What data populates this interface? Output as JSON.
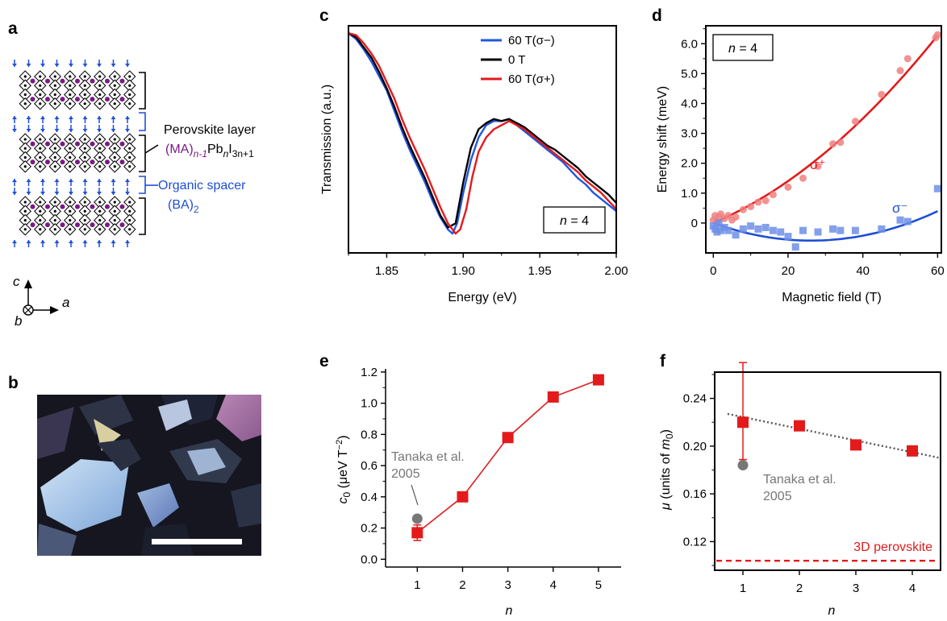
{
  "panels": {
    "a": "a",
    "b": "b",
    "c": "c",
    "d": "d",
    "e": "e",
    "f": "f"
  },
  "panel_a": {
    "perovskite_layer": "Perovskite layer",
    "formula_ma": "(MA)",
    "formula_ma_sub": "n-1",
    "formula_pb": "Pb",
    "formula_pb_sub": "n",
    "formula_i": "I",
    "formula_i_sub": "3n+1",
    "organic_spacer": "Organic spacer",
    "ba": "(BA)",
    "ba_sub": "2",
    "axis_c": "c",
    "axis_a": "a",
    "axis_b": "b",
    "colors": {
      "perovskite": "#7b1a87",
      "spacer": "#1f4fd6",
      "black": "#000000"
    }
  },
  "chart_data": [
    {
      "panel": "c",
      "type": "line",
      "xlabel": "Energy (eV)",
      "ylabel": "Transmission (a.u.)",
      "xlim": [
        1.825,
        2.0
      ],
      "x_ticks": [
        "1.85",
        "1.90",
        "1.95",
        "2.00"
      ],
      "inset": "n = 4",
      "legend_position": "top-right",
      "series": [
        {
          "name": "60 T(σ−)",
          "color": "#1f57e0",
          "x": [
            1.825,
            1.83,
            1.835,
            1.84,
            1.845,
            1.85,
            1.855,
            1.86,
            1.865,
            1.87,
            1.875,
            1.88,
            1.885,
            1.89,
            1.893,
            1.896,
            1.9,
            1.905,
            1.91,
            1.915,
            1.92,
            1.925,
            1.93,
            1.935,
            1.94,
            1.945,
            1.95,
            1.955,
            1.96,
            1.965,
            1.97,
            1.975,
            1.98,
            1.985,
            1.99,
            1.995,
            2.0
          ],
          "y": [
            0.98,
            0.95,
            0.9,
            0.84,
            0.77,
            0.7,
            0.6,
            0.5,
            0.41,
            0.33,
            0.25,
            0.16,
            0.08,
            0.02,
            0.0,
            0.05,
            0.2,
            0.36,
            0.47,
            0.53,
            0.55,
            0.55,
            0.56,
            0.53,
            0.5,
            0.47,
            0.44,
            0.41,
            0.38,
            0.35,
            0.31,
            0.27,
            0.24,
            0.2,
            0.17,
            0.14,
            0.11
          ]
        },
        {
          "name": "0 T",
          "color": "#000000",
          "x": [
            1.825,
            1.83,
            1.835,
            1.84,
            1.845,
            1.85,
            1.855,
            1.86,
            1.865,
            1.87,
            1.875,
            1.88,
            1.885,
            1.89,
            1.895,
            1.9,
            1.905,
            1.91,
            1.915,
            1.92,
            1.925,
            1.93,
            1.935,
            1.94,
            1.945,
            1.95,
            1.955,
            1.96,
            1.965,
            1.97,
            1.975,
            1.98,
            1.985,
            1.99,
            1.995,
            2.0
          ],
          "y": [
            0.98,
            0.96,
            0.91,
            0.86,
            0.79,
            0.71,
            0.62,
            0.52,
            0.43,
            0.35,
            0.27,
            0.18,
            0.09,
            0.03,
            0.05,
            0.25,
            0.42,
            0.51,
            0.54,
            0.56,
            0.55,
            0.56,
            0.54,
            0.52,
            0.49,
            0.46,
            0.43,
            0.41,
            0.38,
            0.35,
            0.32,
            0.28,
            0.25,
            0.22,
            0.19,
            0.15
          ]
        },
        {
          "name": "60 T(σ+)",
          "color": "#e31a1c",
          "x": [
            1.825,
            1.83,
            1.835,
            1.84,
            1.845,
            1.85,
            1.855,
            1.86,
            1.865,
            1.87,
            1.875,
            1.88,
            1.885,
            1.89,
            1.895,
            1.898,
            1.902,
            1.906,
            1.91,
            1.915,
            1.92,
            1.925,
            1.93,
            1.935,
            1.94,
            1.945,
            1.95,
            1.955,
            1.96,
            1.965,
            1.97,
            1.975,
            1.98,
            1.985,
            1.99,
            1.995,
            2.0
          ],
          "y": [
            0.98,
            0.97,
            0.93,
            0.88,
            0.82,
            0.74,
            0.66,
            0.56,
            0.47,
            0.39,
            0.31,
            0.22,
            0.13,
            0.05,
            0.0,
            0.02,
            0.12,
            0.28,
            0.4,
            0.47,
            0.51,
            0.53,
            0.55,
            0.53,
            0.51,
            0.48,
            0.45,
            0.42,
            0.39,
            0.36,
            0.33,
            0.3,
            0.26,
            0.23,
            0.2,
            0.16,
            0.12
          ]
        }
      ]
    },
    {
      "panel": "d",
      "type": "scatter",
      "xlabel": "Magnetic field (T)",
      "ylabel": "Energy shift (meV)",
      "xlim": [
        -2,
        61
      ],
      "ylim": [
        -1.0,
        6.6
      ],
      "x_ticks": [
        0,
        20,
        40,
        60
      ],
      "y_ticks": [
        "0",
        "1.0",
        "2.0",
        "3.0",
        "4.0",
        "5.0",
        "6.0"
      ],
      "inset": "n = 4",
      "annotations": [
        "σ⁺",
        "σ⁻"
      ],
      "series": [
        {
          "name": "σ⁺",
          "color": "#f08080",
          "marker": "circle",
          "x": [
            0,
            0.5,
            1,
            1.5,
            2,
            3,
            4,
            5,
            6,
            8,
            10,
            12,
            14,
            16,
            20,
            24,
            28,
            32,
            34,
            38,
            45,
            50,
            52,
            59.5,
            60
          ],
          "y": [
            0.1,
            0.25,
            0.05,
            0.2,
            0.3,
            0.15,
            0.25,
            0.1,
            0.2,
            0.45,
            0.55,
            0.7,
            0.75,
            0.95,
            1.2,
            1.5,
            1.9,
            2.65,
            2.7,
            3.4,
            4.3,
            5.1,
            5.5,
            6.2,
            6.3
          ]
        },
        {
          "name": "σ⁻",
          "color": "#6f8fe8",
          "marker": "square",
          "x": [
            0,
            0.5,
            1,
            1.5,
            2,
            3,
            4,
            6,
            8,
            10,
            12,
            14,
            16,
            18,
            20,
            22,
            24,
            28,
            32,
            34,
            38,
            45,
            50,
            52,
            60
          ],
          "y": [
            -0.1,
            -0.2,
            -0.3,
            0.0,
            -0.25,
            -0.15,
            -0.25,
            -0.4,
            -0.2,
            -0.1,
            -0.2,
            -0.15,
            -0.25,
            -0.3,
            -0.45,
            -0.8,
            -0.25,
            -0.3,
            -0.2,
            -0.25,
            -0.25,
            -0.2,
            0.1,
            0.05,
            1.15
          ]
        }
      ],
      "fits": [
        {
          "name": "σ⁺ fit",
          "color": "#e31a1c",
          "shift": 0.053,
          "quad": 0.00086
        },
        {
          "name": "σ⁻ fit",
          "color": "#1f4fd6",
          "shift": -0.045,
          "quad": 0.00086
        }
      ]
    },
    {
      "panel": "e",
      "type": "line",
      "xlabel": "n",
      "ylabel": "c0 (μeV T−2)",
      "ylabel_main": "c",
      "ylabel_sub": "0",
      "ylabel_units": " (μeV T",
      "ylabel_sup": "−2",
      "ylabel_close": ")",
      "xlim": [
        0.3,
        5.5
      ],
      "ylim": [
        -0.05,
        1.22
      ],
      "x_ticks": [
        1,
        2,
        3,
        4,
        5
      ],
      "y_ticks": [
        "0.0",
        "0.2",
        "0.4",
        "0.6",
        "0.8",
        "1.0",
        "1.2"
      ],
      "series": [
        {
          "name": "",
          "color": "#e31a1c",
          "marker": "square",
          "x": [
            1,
            2,
            3,
            4,
            5
          ],
          "y": [
            0.17,
            0.4,
            0.78,
            1.04,
            1.15
          ],
          "error": [
            0.05,
            0,
            0,
            0,
            0
          ]
        }
      ],
      "reference": {
        "label_1": "Tanaka et al.",
        "label_2": "2005",
        "x": 1,
        "y": 0.26,
        "color": "#777777"
      }
    },
    {
      "panel": "f",
      "type": "scatter",
      "xlabel": "n",
      "ylabel": "μ (units of m0)",
      "ylabel_main": "μ",
      "ylabel_units": " (units of ",
      "ylabel_m": "m",
      "ylabel_sub": "0",
      "ylabel_close": ")",
      "xlim": [
        0.5,
        4.5
      ],
      "ylim": [
        0.096,
        0.262
      ],
      "x_ticks": [
        1,
        2,
        3,
        4
      ],
      "y_ticks": [
        "0.12",
        "0.16",
        "0.20",
        "0.24"
      ],
      "series": [
        {
          "name": "",
          "color": "#e31a1c",
          "marker": "square",
          "x": [
            1,
            2,
            3,
            4
          ],
          "y": [
            0.22,
            0.217,
            0.201,
            0.196
          ],
          "error": [
            0.05,
            0,
            0,
            0
          ]
        }
      ],
      "trend": {
        "x": [
          0.5,
          4.5
        ],
        "y": [
          0.227,
          0.19
        ]
      },
      "reference": {
        "label_1": "Tanaka et al.",
        "label_2": "2005",
        "x": 1,
        "y": 0.184,
        "color": "#777777"
      },
      "baseline": {
        "label": "3D perovskite",
        "y": 0.104,
        "color": "#e31a1c"
      }
    }
  ]
}
